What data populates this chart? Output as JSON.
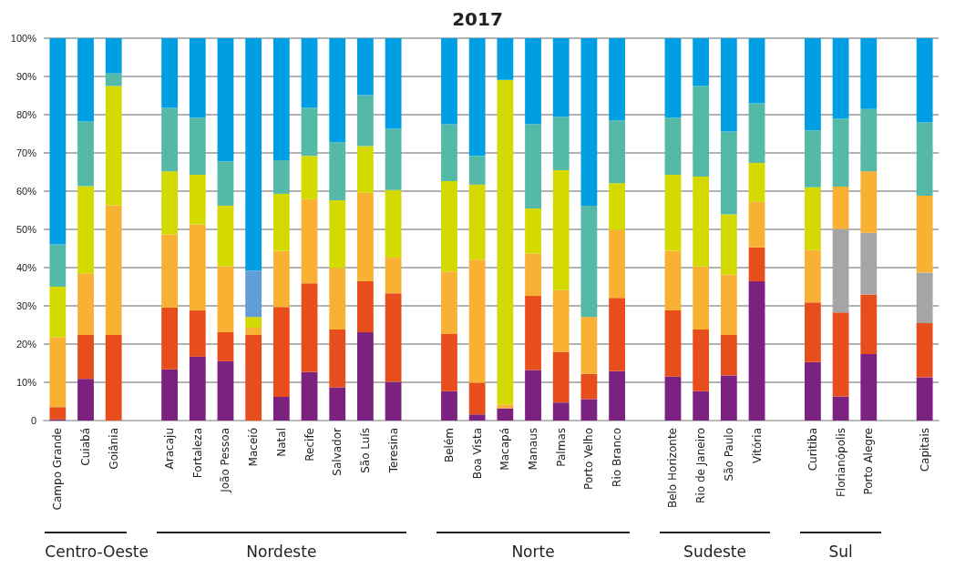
{
  "chart_data": {
    "type": "bar",
    "stacked": true,
    "title": "2017",
    "categories": [
      "Campo Grande",
      "Cuiabá",
      "Goiânia",
      null,
      "Aracaju",
      "Fortaleza",
      "João Pessoa",
      "Maceió",
      "Natal",
      "Recife",
      "Salvador",
      "São Luís",
      "Teresina",
      null,
      "Belém",
      "Boa Vista",
      "Macapá",
      "Manaus",
      "Palmas",
      "Porto Velho",
      "Rio Branco",
      null,
      "Belo Horizonte",
      "Rio de Janeiro",
      "São Paulo",
      "Vitória",
      null,
      "Curitiba",
      "Florianópolis",
      "Porto Alegre",
      null,
      "Capitais"
    ],
    "series": [
      {
        "color": "#7b2180",
        "values": [
          0.3,
          10.9,
          null,
          null,
          13.4,
          16.7,
          15.5,
          null,
          6.2,
          12.7,
          8.7,
          23.1,
          10.1,
          null,
          7.7,
          1.6,
          3.2,
          13.2,
          4.7,
          5.6,
          12.9,
          null,
          11.5,
          7.7,
          11.8,
          36.4,
          null,
          15.3,
          6.3,
          17.4,
          null,
          11.3
        ]
      },
      {
        "color": "#e84e1c",
        "values": [
          3.2,
          11.5,
          22.4,
          null,
          16.1,
          12.1,
          7.6,
          22.4,
          23.5,
          23.2,
          15.1,
          13.3,
          23.2,
          null,
          14.9,
          8.3,
          null,
          19.4,
          13.2,
          6.6,
          19.2,
          null,
          17.3,
          16.1,
          10.6,
          8.9,
          null,
          15.6,
          22.0,
          15.6,
          null,
          14.2
        ]
      },
      {
        "color": "#a5a5a5",
        "values": [
          null,
          null,
          null,
          null,
          null,
          null,
          null,
          null,
          null,
          null,
          null,
          null,
          null,
          null,
          null,
          null,
          null,
          null,
          null,
          null,
          null,
          null,
          null,
          null,
          null,
          null,
          null,
          null,
          21.8,
          16.1,
          null,
          13.2
        ]
      },
      {
        "color": "#f8b133",
        "values": [
          18.3,
          16.1,
          33.9,
          null,
          19.2,
          22.5,
          17.2,
          1.9,
          14.7,
          22.0,
          16.1,
          23.2,
          9.3,
          null,
          16.4,
          32.2,
          1.0,
          11.1,
          16.2,
          14.9,
          17.7,
          null,
          15.6,
          16.5,
          15.8,
          11.9,
          null,
          13.7,
          11.1,
          16.1,
          null,
          20.1
        ]
      },
      {
        "color": "#d4d900",
        "values": [
          13.2,
          22.8,
          31.2,
          null,
          16.5,
          13.0,
          15.9,
          2.8,
          14.9,
          11.3,
          17.7,
          12.2,
          17.7,
          null,
          23.6,
          19.6,
          84.9,
          11.8,
          31.4,
          null,
          12.3,
          null,
          19.9,
          23.5,
          15.7,
          10.2,
          null,
          16.4,
          null,
          null,
          null,
          null
        ]
      },
      {
        "color": "#5f9ed6",
        "values": [
          null,
          null,
          null,
          null,
          null,
          null,
          null,
          12.1,
          null,
          null,
          null,
          null,
          null,
          null,
          null,
          null,
          null,
          null,
          null,
          null,
          null,
          null,
          null,
          null,
          null,
          null,
          null,
          null,
          null,
          null,
          null,
          null
        ]
      },
      {
        "color": "#55b9a8",
        "values": [
          11.1,
          16.9,
          3.3,
          null,
          16.6,
          14.9,
          11.6,
          null,
          8.8,
          12.6,
          15.2,
          13.3,
          16.0,
          null,
          14.9,
          7.5,
          null,
          22.0,
          13.9,
          29.1,
          16.4,
          null,
          14.9,
          23.7,
          21.7,
          15.6,
          null,
          14.9,
          17.7,
          16.3,
          null,
          19.2
        ]
      },
      {
        "color": "#009fe3",
        "values": [
          53.9,
          21.8,
          9.2,
          null,
          18.2,
          20.8,
          32.2,
          60.8,
          31.9,
          18.2,
          27.2,
          14.9,
          23.7,
          null,
          22.5,
          30.8,
          10.9,
          22.5,
          20.6,
          43.8,
          21.5,
          null,
          20.8,
          12.5,
          24.4,
          17.0,
          null,
          24.1,
          21.1,
          18.5,
          null,
          22.0
        ]
      }
    ],
    "ylim": [
      0,
      100
    ],
    "yticks": [
      0,
      {
        "value": 10,
        "label": "10%"
      },
      {
        "value": 20,
        "label": "20%"
      },
      {
        "value": 30,
        "label": "30%"
      },
      {
        "value": 40,
        "label": "40%"
      },
      {
        "value": 50,
        "label": "50%"
      },
      {
        "value": 60,
        "label": "60%"
      },
      {
        "value": 70,
        "label": "70%"
      },
      {
        "value": 80,
        "label": "80%"
      },
      {
        "value": 90,
        "label": "90%"
      },
      {
        "value": 100,
        "label": "100%"
      }
    ],
    "grid": "y",
    "annotations": [
      "Centro-Oeste",
      "Nordeste",
      "Norte",
      "Sudeste",
      "Sul"
    ]
  }
}
